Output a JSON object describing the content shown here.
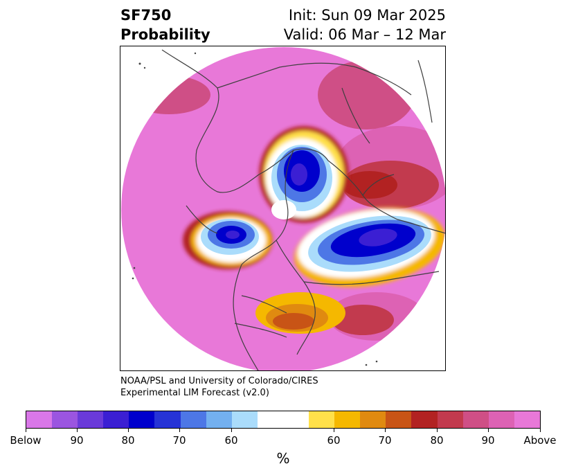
{
  "header": {
    "title_line1": "SF750",
    "title_line2": "Probability",
    "init": "Init: Sun 09 Mar 2025",
    "valid": "Valid: 06 Mar – 12 Mar"
  },
  "credit": {
    "line1": "NOAA/PSL and University of Colorado/CIRES",
    "line2": "Experimental LIM Forecast (v2.0)"
  },
  "colorbar": {
    "colors": [
      "#d977e8",
      "#9b55e0",
      "#6a3ad9",
      "#3b1fd3",
      "#0000cc",
      "#2633d6",
      "#4d77e6",
      "#73b0f0",
      "#aadcfb",
      "#ffffff",
      "#ffe04a",
      "#f5b800",
      "#e08a10",
      "#c85416",
      "#b22222",
      "#c23a4e",
      "#cf4f86",
      "#dd62b4",
      "#e878d8"
    ],
    "labels": [
      "Below",
      "90",
      "80",
      "70",
      "60",
      "60",
      "70",
      "80",
      "90",
      "Above"
    ],
    "unit": "%"
  },
  "map": {
    "projection": "north-polar-stereographic",
    "variable": "SF750 probability",
    "features": [
      "negative-anomaly-western-pacific",
      "negative-anomaly-north-atlantic",
      "negative-anomaly-greenland-sea",
      "positive-anomaly-eastern-us",
      "positive-anomaly-siberia",
      "positive-anomaly-pacific"
    ]
  }
}
